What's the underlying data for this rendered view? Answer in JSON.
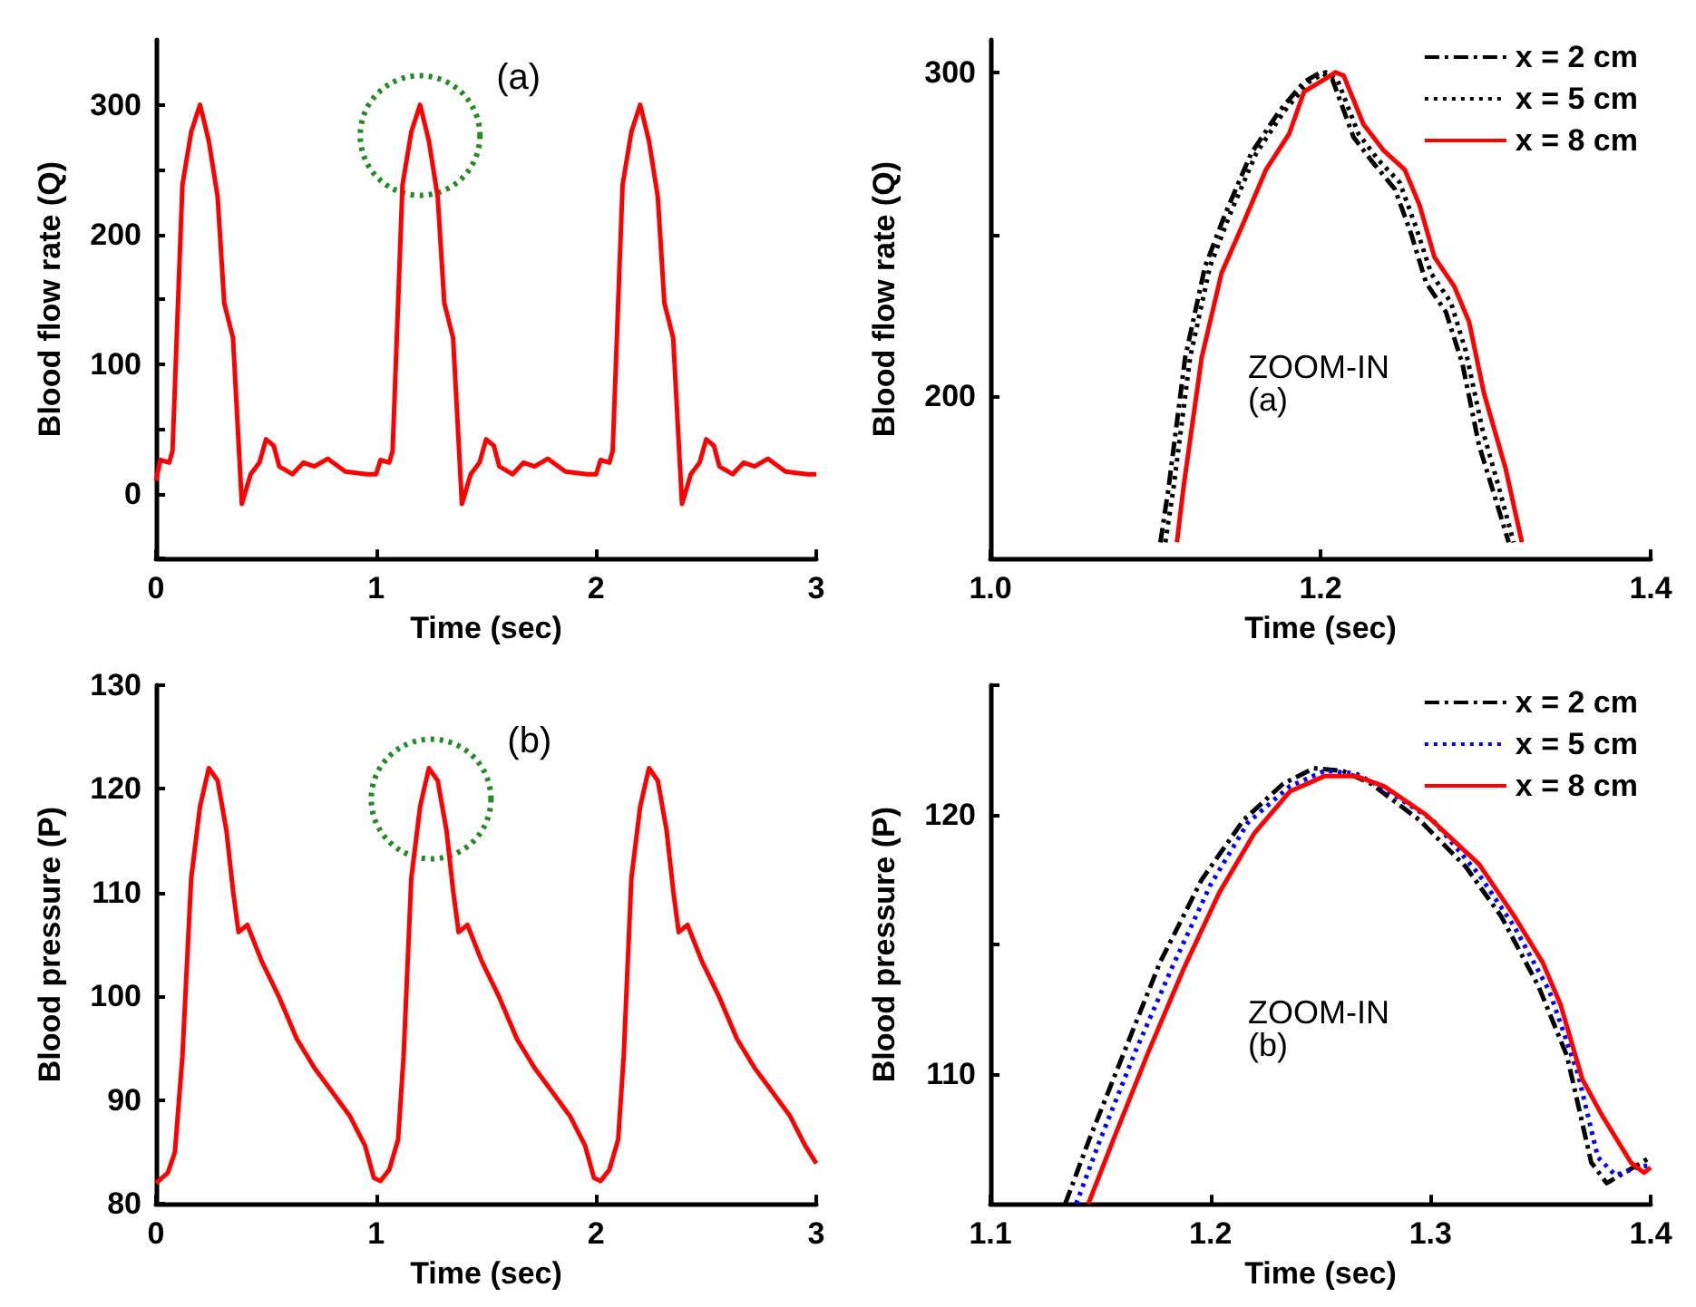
{
  "chart_data": [
    {
      "type": "line",
      "xlabel": "Time (sec)",
      "ylabel": "Blood flow rate (Q)",
      "xlim": [
        0,
        3
      ],
      "xticks": [
        0,
        1,
        2,
        3
      ],
      "ylim": [
        -50,
        350
      ],
      "yticks": [
        {
          "value": -50,
          "label": null
        },
        0,
        {
          "value": 50,
          "label": null
        },
        100,
        {
          "value": 150,
          "label": null
        },
        200,
        {
          "value": 250,
          "label": null
        },
        300
      ],
      "grid": false,
      "legend": false,
      "marker": "none",
      "annotations": [
        {
          "text": "(a)",
          "x": 1.2,
          "y": 300
        }
      ],
      "series": [
        {
          "color": "#ff0000",
          "line_style": "solid",
          "x": [
            0,
            0.02,
            0.06,
            0.075,
            0.12,
            0.16,
            0.2,
            0.24,
            0.28,
            0.31,
            0.35,
            0.39,
            0.43,
            0.47,
            0.5,
            0.535,
            0.56,
            0.62,
            0.67,
            0.72,
            0.78,
            0.86,
            0.96,
            1.0,
            1.02,
            1.06,
            1.075,
            1.12,
            1.16,
            1.2,
            1.24,
            1.28,
            1.31,
            1.35,
            1.39,
            1.43,
            1.47,
            1.5,
            1.535,
            1.56,
            1.62,
            1.67,
            1.72,
            1.78,
            1.86,
            1.96,
            2.0,
            2.02,
            2.06,
            2.075,
            2.12,
            2.16,
            2.2,
            2.24,
            2.28,
            2.31,
            2.35,
            2.39,
            2.43,
            2.47,
            2.5,
            2.535,
            2.56,
            2.62,
            2.67,
            2.72,
            2.78,
            2.86,
            2.96,
            3.0
          ],
          "values": [
            10,
            26,
            24,
            33,
            238,
            279,
            300,
            272,
            229,
            147,
            120,
            -8,
            15,
            24,
            42,
            37,
            21,
            15,
            24,
            21,
            27,
            17,
            15,
            15,
            26,
            24,
            33,
            238,
            279,
            300,
            272,
            229,
            147,
            120,
            -8,
            15,
            24,
            42,
            37,
            21,
            15,
            24,
            21,
            27,
            17,
            15,
            15,
            26,
            24,
            33,
            238,
            279,
            300,
            272,
            229,
            147,
            120,
            -8,
            15,
            24,
            42,
            37,
            21,
            15,
            24,
            21,
            27,
            17,
            15,
            15
          ]
        }
      ]
    },
    {
      "type": "line",
      "xlabel": "Time (sec)",
      "ylabel": "Blood flow rate (Q)",
      "xlim": [
        1,
        1.4
      ],
      "xticks": [
        {
          "value": 1,
          "label": "1.0"
        },
        1.2,
        1.4
      ],
      "ylim": [
        150,
        310
      ],
      "yticks": [
        200,
        {
          "value": 250,
          "label": null
        },
        300
      ],
      "grid": false,
      "legend": "top right",
      "marker": "none",
      "annotations": [
        "ZOOM-IN\n(a)"
      ],
      "series": [
        {
          "name": "x = 2 cm",
          "color": "#000000",
          "line_style": "dashdot",
          "x": [
            1.103,
            1.108,
            1.118,
            1.13,
            1.142,
            1.158,
            1.175,
            1.19,
            1.2,
            1.207,
            1.22,
            1.232,
            1.245,
            1.255,
            1.264,
            1.276,
            1.286,
            1.296,
            1.305,
            1.314
          ],
          "values": [
            155,
            172,
            212,
            240,
            256,
            275,
            288,
            297,
            300,
            298,
            280,
            272,
            264,
            250,
            235,
            226,
            210,
            185,
            170,
            155
          ]
        },
        {
          "name": "x = 5 cm",
          "color": "#000000",
          "line_style": "dotted",
          "x": [
            1.106,
            1.111,
            1.121,
            1.133,
            1.145,
            1.161,
            1.178,
            1.193,
            1.203,
            1.21,
            1.223,
            1.235,
            1.248,
            1.258,
            1.267,
            1.279,
            1.288,
            1.298,
            1.308,
            1.317
          ],
          "values": [
            155,
            172,
            212,
            240,
            256,
            275,
            288,
            297,
            300,
            298,
            281,
            273,
            266,
            252,
            238,
            229,
            214,
            190,
            172,
            155
          ]
        },
        {
          "name": "x = 8 cm",
          "color": "#ff0000",
          "line_style": "solid",
          "x": [
            1.113,
            1.117,
            1.128,
            1.14,
            1.152,
            1.167,
            1.181,
            1.19,
            1.203,
            1.209,
            1.214,
            1.226,
            1.238,
            1.251,
            1.26,
            1.269,
            1.281,
            1.29,
            1.299,
            1.312,
            1.322
          ],
          "values": [
            155,
            172,
            212,
            238,
            252,
            270,
            281,
            294,
            298,
            300,
            299,
            284,
            276,
            270,
            259,
            243,
            234,
            223,
            201,
            178,
            155
          ]
        }
      ]
    },
    {
      "type": "line",
      "xlabel": "Time (sec)",
      "ylabel": "Blood pressure (P)",
      "xlim": [
        0,
        3
      ],
      "xticks": [
        0,
        1,
        2,
        3
      ],
      "ylim": [
        80,
        130
      ],
      "yticks": [
        80,
        90,
        100,
        110,
        120,
        130
      ],
      "grid": false,
      "legend": false,
      "marker": "none",
      "annotations": [
        {
          "text": "(b)",
          "x": 1.25,
          "y": 122
        }
      ],
      "series": [
        {
          "color": "#ff0000",
          "line_style": "solid",
          "x": [
            0,
            0.054,
            0.086,
            0.12,
            0.16,
            0.2,
            0.24,
            0.28,
            0.32,
            0.35,
            0.375,
            0.415,
            0.48,
            0.56,
            0.64,
            0.72,
            0.8,
            0.88,
            0.95,
            0.99,
            1.02,
            1.06,
            1.1,
            1.125,
            1.16,
            1.2,
            1.24,
            1.28,
            1.32,
            1.35,
            1.375,
            1.415,
            1.48,
            1.56,
            1.64,
            1.72,
            1.8,
            1.88,
            1.95,
            1.99,
            2.02,
            2.06,
            2.1,
            2.125,
            2.16,
            2.2,
            2.24,
            2.28,
            2.32,
            2.35,
            2.375,
            2.415,
            2.48,
            2.56,
            2.64,
            2.72,
            2.8,
            2.88,
            2.95,
            3.0
          ],
          "values": [
            82,
            83,
            85,
            94.2,
            111.4,
            118.3,
            122,
            120.8,
            116,
            110.2,
            106.2,
            106.9,
            103.4,
            99.9,
            95.9,
            93.1,
            90.8,
            88.5,
            85.6,
            82.5,
            82.2,
            83.3,
            86.2,
            94.2,
            111.4,
            118.3,
            122,
            120.8,
            116,
            110.2,
            106.2,
            106.9,
            103.4,
            99.9,
            95.9,
            93.1,
            90.8,
            88.5,
            85.6,
            82.5,
            82.2,
            83.3,
            86.2,
            94.2,
            111.4,
            118.3,
            122,
            120.8,
            116,
            110.2,
            106.2,
            106.9,
            103.4,
            99.9,
            95.9,
            93.1,
            90.8,
            88.5,
            85.6,
            83.9
          ]
        }
      ]
    },
    {
      "type": "line",
      "xlabel": "Time (sec)",
      "ylabel": "Blood pressure (P)",
      "xlim": [
        1.1,
        1.4
      ],
      "xticks": [
        1.1,
        1.2,
        1.3,
        1.4
      ],
      "ylim": [
        105,
        125
      ],
      "yticks": [
        110,
        {
          "value": 115,
          "label": null
        },
        120,
        {
          "value": 125,
          "label": null
        }
      ],
      "grid": false,
      "legend": "top right",
      "marker": "none",
      "annotations": [
        "ZOOM-IN\n(b)"
      ],
      "series": [
        {
          "name": "x = 2 cm",
          "color": "#000000",
          "line_style": "dashdot",
          "x": [
            1.134,
            1.145,
            1.161,
            1.177,
            1.196,
            1.215,
            1.233,
            1.247,
            1.26,
            1.273,
            1.295,
            1.316,
            1.332,
            1.349,
            1.362,
            1.373,
            1.38,
            1.386,
            1.4
          ],
          "values": [
            105,
            107.5,
            110.9,
            114.3,
            117.5,
            119.8,
            121.2,
            121.8,
            121.7,
            121.2,
            119.8,
            118,
            116.1,
            113.4,
            110.7,
            106.6,
            105.8,
            106.1,
            106.8
          ]
        },
        {
          "name": "x = 5 cm",
          "color": "#0000ff",
          "line_style": "dotted",
          "x": [
            1.139,
            1.15,
            1.166,
            1.183,
            1.2,
            1.217,
            1.236,
            1.252,
            1.266,
            1.279,
            1.301,
            1.322,
            1.338,
            1.354,
            1.367,
            1.376,
            1.384,
            1.394,
            1.4
          ],
          "values": [
            105,
            107.5,
            110.9,
            114.2,
            117.3,
            119.7,
            121.1,
            121.7,
            121.6,
            121,
            119.8,
            117.7,
            115.7,
            113.2,
            110,
            106.8,
            106.1,
            106.4,
            106.5
          ]
        },
        {
          "name": "x = 8 cm",
          "color": "#ff0000",
          "line_style": "solid",
          "x": [
            1.1445,
            1.156,
            1.172,
            1.188,
            1.204,
            1.22,
            1.236,
            1.252,
            1.266,
            1.279,
            1.298,
            1.322,
            1.338,
            1.351,
            1.359,
            1.369,
            1.378,
            1.391,
            1.397,
            1.4
          ],
          "values": [
            105,
            107.5,
            110.9,
            114.1,
            117,
            119.3,
            120.9,
            121.5,
            121.5,
            121.1,
            120,
            118.1,
            116.1,
            114.3,
            112.7,
            109.8,
            108.4,
            106.6,
            106.2,
            106.4
          ]
        }
      ]
    }
  ]
}
